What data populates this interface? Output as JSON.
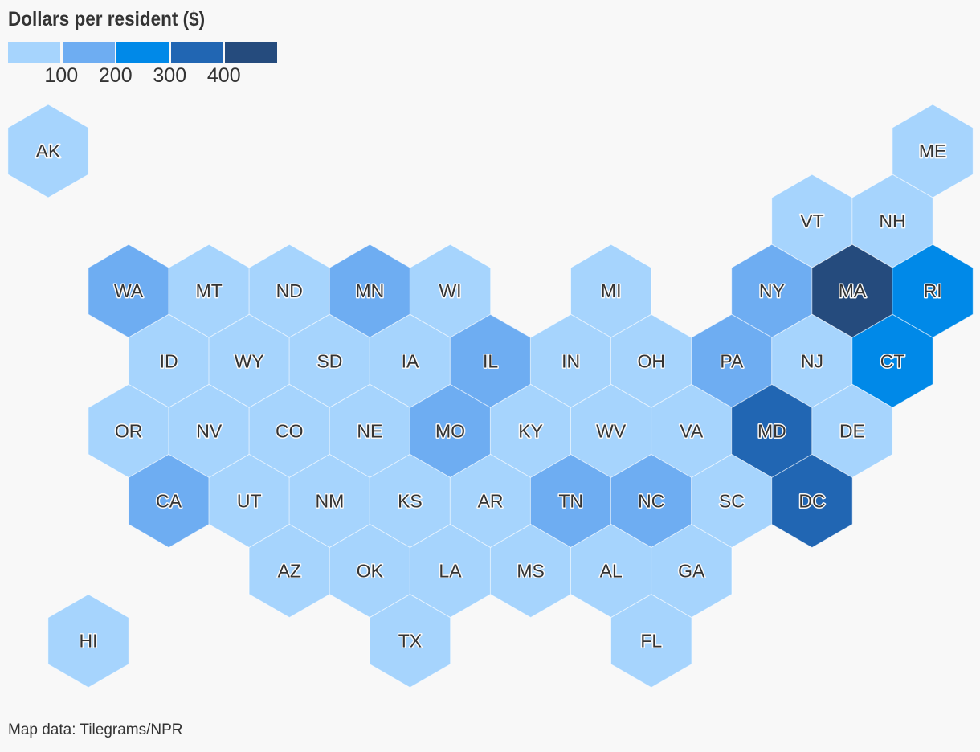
{
  "legend": {
    "title": "Dollars per resident ($)",
    "colors": [
      "#a6d4fd",
      "#6eadf2",
      "#0089e8",
      "#2166b3",
      "#254b7d"
    ],
    "ticks": [
      "100",
      "200",
      "300",
      "400"
    ]
  },
  "map": {
    "states": [
      {
        "abbr": "AK",
        "col": 0,
        "row": 0,
        "tier": 0
      },
      {
        "abbr": "ME",
        "col": 11,
        "row": 0,
        "tier": 0
      },
      {
        "abbr": "VT",
        "col": 9.5,
        "row": 1,
        "tier": 0
      },
      {
        "abbr": "NH",
        "col": 10.5,
        "row": 1,
        "tier": 0
      },
      {
        "abbr": "WA",
        "col": 1,
        "row": 2,
        "tier": 1
      },
      {
        "abbr": "MT",
        "col": 2,
        "row": 2,
        "tier": 0
      },
      {
        "abbr": "ND",
        "col": 3,
        "row": 2,
        "tier": 0
      },
      {
        "abbr": "MN",
        "col": 4,
        "row": 2,
        "tier": 1
      },
      {
        "abbr": "WI",
        "col": 5,
        "row": 2,
        "tier": 0
      },
      {
        "abbr": "MI",
        "col": 7,
        "row": 2,
        "tier": 0
      },
      {
        "abbr": "NY",
        "col": 9,
        "row": 2,
        "tier": 1
      },
      {
        "abbr": "MA",
        "col": 10,
        "row": 2,
        "tier": 4
      },
      {
        "abbr": "RI",
        "col": 11,
        "row": 2,
        "tier": 2
      },
      {
        "abbr": "ID",
        "col": 1.5,
        "row": 3,
        "tier": 0
      },
      {
        "abbr": "WY",
        "col": 2.5,
        "row": 3,
        "tier": 0
      },
      {
        "abbr": "SD",
        "col": 3.5,
        "row": 3,
        "tier": 0
      },
      {
        "abbr": "IA",
        "col": 4.5,
        "row": 3,
        "tier": 0
      },
      {
        "abbr": "IL",
        "col": 5.5,
        "row": 3,
        "tier": 1
      },
      {
        "abbr": "IN",
        "col": 6.5,
        "row": 3,
        "tier": 0
      },
      {
        "abbr": "OH",
        "col": 7.5,
        "row": 3,
        "tier": 0
      },
      {
        "abbr": "PA",
        "col": 8.5,
        "row": 3,
        "tier": 1
      },
      {
        "abbr": "NJ",
        "col": 9.5,
        "row": 3,
        "tier": 0
      },
      {
        "abbr": "CT",
        "col": 10.5,
        "row": 3,
        "tier": 2
      },
      {
        "abbr": "OR",
        "col": 1,
        "row": 4,
        "tier": 0
      },
      {
        "abbr": "NV",
        "col": 2,
        "row": 4,
        "tier": 0
      },
      {
        "abbr": "CO",
        "col": 3,
        "row": 4,
        "tier": 0
      },
      {
        "abbr": "NE",
        "col": 4,
        "row": 4,
        "tier": 0
      },
      {
        "abbr": "MO",
        "col": 5,
        "row": 4,
        "tier": 1
      },
      {
        "abbr": "KY",
        "col": 6,
        "row": 4,
        "tier": 0
      },
      {
        "abbr": "WV",
        "col": 7,
        "row": 4,
        "tier": 0
      },
      {
        "abbr": "VA",
        "col": 8,
        "row": 4,
        "tier": 0
      },
      {
        "abbr": "MD",
        "col": 9,
        "row": 4,
        "tier": 3
      },
      {
        "abbr": "DE",
        "col": 10,
        "row": 4,
        "tier": 0
      },
      {
        "abbr": "CA",
        "col": 1.5,
        "row": 5,
        "tier": 1
      },
      {
        "abbr": "UT",
        "col": 2.5,
        "row": 5,
        "tier": 0
      },
      {
        "abbr": "NM",
        "col": 3.5,
        "row": 5,
        "tier": 0
      },
      {
        "abbr": "KS",
        "col": 4.5,
        "row": 5,
        "tier": 0
      },
      {
        "abbr": "AR",
        "col": 5.5,
        "row": 5,
        "tier": 0
      },
      {
        "abbr": "TN",
        "col": 6.5,
        "row": 5,
        "tier": 1
      },
      {
        "abbr": "NC",
        "col": 7.5,
        "row": 5,
        "tier": 1
      },
      {
        "abbr": "SC",
        "col": 8.5,
        "row": 5,
        "tier": 0
      },
      {
        "abbr": "DC",
        "col": 9.5,
        "row": 5,
        "tier": 3
      },
      {
        "abbr": "AZ",
        "col": 3,
        "row": 6,
        "tier": 0
      },
      {
        "abbr": "OK",
        "col": 4,
        "row": 6,
        "tier": 0
      },
      {
        "abbr": "LA",
        "col": 5,
        "row": 6,
        "tier": 0
      },
      {
        "abbr": "MS",
        "col": 6,
        "row": 6,
        "tier": 0
      },
      {
        "abbr": "AL",
        "col": 7,
        "row": 6,
        "tier": 0
      },
      {
        "abbr": "GA",
        "col": 8,
        "row": 6,
        "tier": 0
      },
      {
        "abbr": "HI",
        "col": 0.5,
        "row": 7,
        "tier": 0
      },
      {
        "abbr": "TX",
        "col": 4.5,
        "row": 7,
        "tier": 0
      },
      {
        "abbr": "FL",
        "col": 7.5,
        "row": 7,
        "tier": 0
      }
    ]
  },
  "source": "Map data: Tilegrams/NPR"
}
